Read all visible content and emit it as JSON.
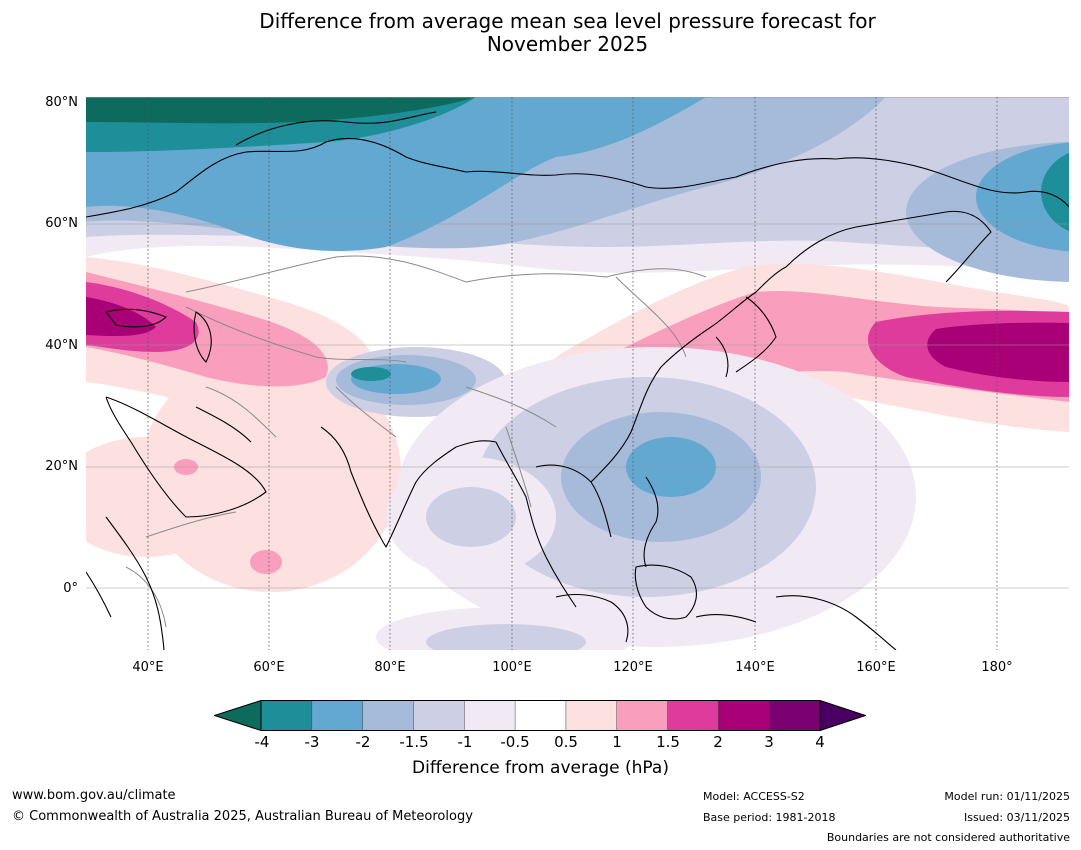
{
  "title_line1": "Difference from average mean sea level pressure forecast for",
  "title_line2": "November 2025",
  "lat_labels": [
    "80°N",
    "60°N",
    "40°N",
    "20°N",
    "0°"
  ],
  "lon_labels": [
    "40°E",
    "60°E",
    "80°E",
    "100°E",
    "120°E",
    "140°E",
    "160°E",
    "180°"
  ],
  "legend": {
    "ticks": [
      "-4",
      "-3",
      "-2",
      "-1.5",
      "-1",
      "-0.5",
      "0.5",
      "1",
      "1.5",
      "2",
      "3",
      "4"
    ],
    "colors": [
      "#0d6b5d",
      "#1e8f99",
      "#63a8d0",
      "#a6bbd9",
      "#cdd0e5",
      "#f1eaf4",
      "#ffffff",
      "#fde0e0",
      "#f99fbd",
      "#de3b9c",
      "#aa0077",
      "#7b0072",
      "#4a0063"
    ],
    "label": "Difference from average (hPa)"
  },
  "footer": {
    "website": "www.bom.gov.au/climate",
    "copyright": "© Commonwealth of Australia 2025, Australian Bureau of Meteorology",
    "model": "Model: ACCESS-S2",
    "base_period": "Base period: 1981-2018",
    "model_run": "Model run: 01/11/2025",
    "issued": "Issued: 03/11/2025",
    "boundaries": "Boundaries are not considered authoritative"
  }
}
